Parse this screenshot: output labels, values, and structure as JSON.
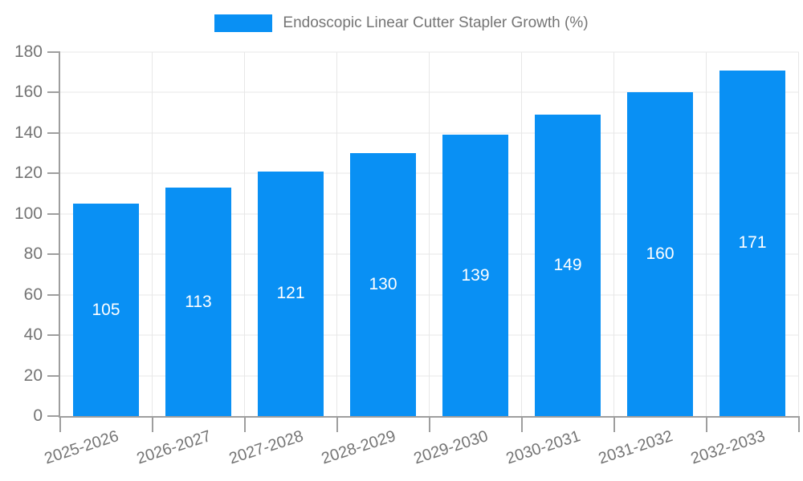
{
  "chart_data": {
    "type": "bar",
    "title": "Endoscopic Linear Cutter Stapler Growth (%)",
    "categories": [
      "2025-2026",
      "2026-2027",
      "2027-2028",
      "2028-2029",
      "2029-2030",
      "2030-2031",
      "2031-2032",
      "2032-2033"
    ],
    "values": [
      105,
      113,
      121,
      130,
      139,
      149,
      160,
      171
    ],
    "xlabel": "",
    "ylabel": "",
    "ylim": [
      0,
      180
    ],
    "yticks": [
      0,
      20,
      40,
      60,
      80,
      100,
      120,
      140,
      160,
      180
    ],
    "grid": "on",
    "legend_position": "top-center",
    "value_labels": "centered-in-bar"
  },
  "colors": {
    "bar": "#0990f4",
    "axis": "#9e9e9e",
    "grid": "#e7e7e7",
    "text": "#757575",
    "value_text": "#ffffff",
    "background": "#ffffff"
  }
}
